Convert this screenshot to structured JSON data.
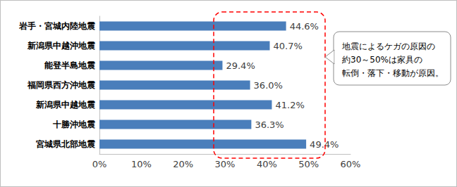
{
  "chart_data": {
    "type": "bar",
    "orientation": "horizontal",
    "categories": [
      "岩手・宮城内陸地震",
      "新潟県中越沖地震",
      "能登半島地震",
      "福岡県西方沖地震",
      "新潟県中越地震",
      "十勝沖地震",
      "宮城県北部地震"
    ],
    "values": [
      44.6,
      40.7,
      29.4,
      36.0,
      41.2,
      36.3,
      49.4
    ],
    "value_labels": [
      "44.6%",
      "40.7%",
      "29.4%",
      "36.0%",
      "41.2%",
      "36.3%",
      "49.4%"
    ],
    "color": "#4a7ebb",
    "xlim": [
      0,
      60
    ],
    "xticks": [
      {
        "value": 0,
        "label": "0%"
      },
      {
        "value": 10,
        "label": "10%"
      },
      {
        "value": 20,
        "label": "20%"
      },
      {
        "value": 30,
        "label": "30%"
      },
      {
        "value": 40,
        "label": "40%"
      },
      {
        "value": 50,
        "label": "50%"
      },
      {
        "value": 60,
        "label": "60%"
      }
    ],
    "grid": false,
    "data_labels": true,
    "annotation": [
      "地震によるケガの原因の",
      "約30～50%は家具の",
      "転倒・落下・移動が原因。"
    ]
  }
}
